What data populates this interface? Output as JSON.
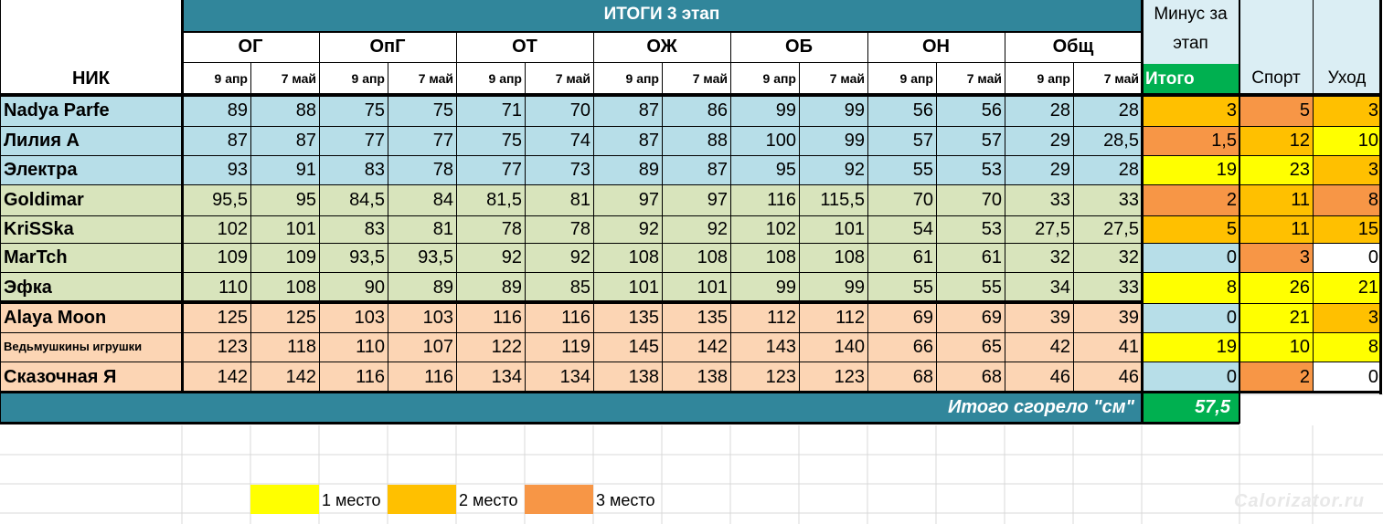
{
  "title": "ИТОГИ 3 этап",
  "nick_header": "НИК",
  "groups": [
    "ОГ",
    "ОпГ",
    "ОТ",
    "ОЖ",
    "ОБ",
    "ОН",
    "Общ"
  ],
  "dates": [
    "9 апр",
    "7 май"
  ],
  "minus_header": "Минус за этап",
  "itogo_header": "Итого",
  "sport_header": "Спорт",
  "uhod_header": "Уход",
  "total_label": "Итого сгорело \"см\"",
  "total_value": "57,5",
  "colors": {
    "header_teal": "#31869b",
    "blue_row": "#b7dee8",
    "green_row": "#d8e4bc",
    "peach_row": "#fcd5b4",
    "first": "#ffff00",
    "second": "#ffc000",
    "third": "#f79646",
    "itogo_green": "#00b050",
    "light_header": "#dbeef4"
  },
  "rows": [
    {
      "nick": "Nadya Parfe",
      "group": "blue",
      "small": false,
      "vals": [
        "89",
        "88",
        "75",
        "75",
        "71",
        "70",
        "87",
        "86",
        "99",
        "99",
        "56",
        "56",
        "28",
        "28"
      ],
      "itogo": "3",
      "itogo_c": "second",
      "sport": "5",
      "sport_c": "third",
      "uhod": "3",
      "uhod_c": "second"
    },
    {
      "nick": "Лилия А",
      "group": "blue",
      "small": false,
      "vals": [
        "87",
        "87",
        "77",
        "77",
        "75",
        "74",
        "87",
        "88",
        "100",
        "99",
        "57",
        "57",
        "29",
        "28,5"
      ],
      "itogo": "1,5",
      "itogo_c": "third",
      "sport": "12",
      "sport_c": "second",
      "uhod": "10",
      "uhod_c": "first"
    },
    {
      "nick": "Электра",
      "group": "blue",
      "small": false,
      "vals": [
        "93",
        "91",
        "83",
        "78",
        "77",
        "73",
        "89",
        "87",
        "95",
        "92",
        "55",
        "53",
        "29",
        "28"
      ],
      "itogo": "19",
      "itogo_c": "first",
      "sport": "23",
      "sport_c": "first",
      "uhod": "3",
      "uhod_c": "second"
    },
    {
      "nick": "Goldimar",
      "group": "green",
      "small": false,
      "vals": [
        "95,5",
        "95",
        "84,5",
        "84",
        "81,5",
        "81",
        "97",
        "97",
        "116",
        "115,5",
        "70",
        "70",
        "33",
        "33"
      ],
      "itogo": "2",
      "itogo_c": "third",
      "sport": "11",
      "sport_c": "second",
      "uhod": "8",
      "uhod_c": "third"
    },
    {
      "nick": "KriSSka",
      "group": "green",
      "small": false,
      "vals": [
        "102",
        "101",
        "83",
        "81",
        "78",
        "78",
        "92",
        "92",
        "102",
        "101",
        "54",
        "53",
        "27,5",
        "27,5"
      ],
      "itogo": "5",
      "itogo_c": "second",
      "sport": "11",
      "sport_c": "second",
      "uhod": "15",
      "uhod_c": "second"
    },
    {
      "nick": "MarTch",
      "group": "green",
      "small": false,
      "vals": [
        "109",
        "109",
        "93,5",
        "93,5",
        "92",
        "92",
        "108",
        "108",
        "108",
        "108",
        "61",
        "61",
        "32",
        "32"
      ],
      "itogo": "0",
      "itogo_c": "blue",
      "sport": "3",
      "sport_c": "third",
      "uhod": "0",
      "uhod_c": "none"
    },
    {
      "nick": "Эфка",
      "group": "green",
      "small": false,
      "vals": [
        "110",
        "108",
        "90",
        "89",
        "89",
        "85",
        "101",
        "101",
        "99",
        "99",
        "55",
        "55",
        "34",
        "33"
      ],
      "itogo": "8",
      "itogo_c": "first",
      "sport": "26",
      "sport_c": "first",
      "uhod": "21",
      "uhod_c": "first"
    },
    {
      "nick": "Alaya Moon",
      "group": "peach",
      "small": false,
      "vals": [
        "125",
        "125",
        "103",
        "103",
        "116",
        "116",
        "135",
        "135",
        "112",
        "112",
        "69",
        "69",
        "39",
        "39"
      ],
      "itogo": "0",
      "itogo_c": "blue",
      "sport": "21",
      "sport_c": "first",
      "uhod": "3",
      "uhod_c": "second"
    },
    {
      "nick": "Ведьмушкины игрушки",
      "group": "peach",
      "small": true,
      "vals": [
        "123",
        "118",
        "110",
        "107",
        "122",
        "119",
        "145",
        "142",
        "143",
        "140",
        "66",
        "65",
        "42",
        "41"
      ],
      "itogo": "19",
      "itogo_c": "first",
      "sport": "10",
      "sport_c": "first",
      "uhod": "8",
      "uhod_c": "first"
    },
    {
      "nick": "Сказочная Я",
      "group": "peach",
      "small": false,
      "vals": [
        "142",
        "142",
        "116",
        "116",
        "134",
        "134",
        "138",
        "138",
        "123",
        "123",
        "68",
        "68",
        "46",
        "46"
      ],
      "itogo": "0",
      "itogo_c": "blue",
      "sport": "2",
      "sport_c": "third",
      "uhod": "0",
      "uhod_c": "none"
    }
  ],
  "legend": [
    {
      "label": "1 место",
      "color": "first"
    },
    {
      "label": "2 место",
      "color": "second"
    },
    {
      "label": "3 место",
      "color": "third"
    }
  ],
  "watermark": "Calorizator.ru"
}
